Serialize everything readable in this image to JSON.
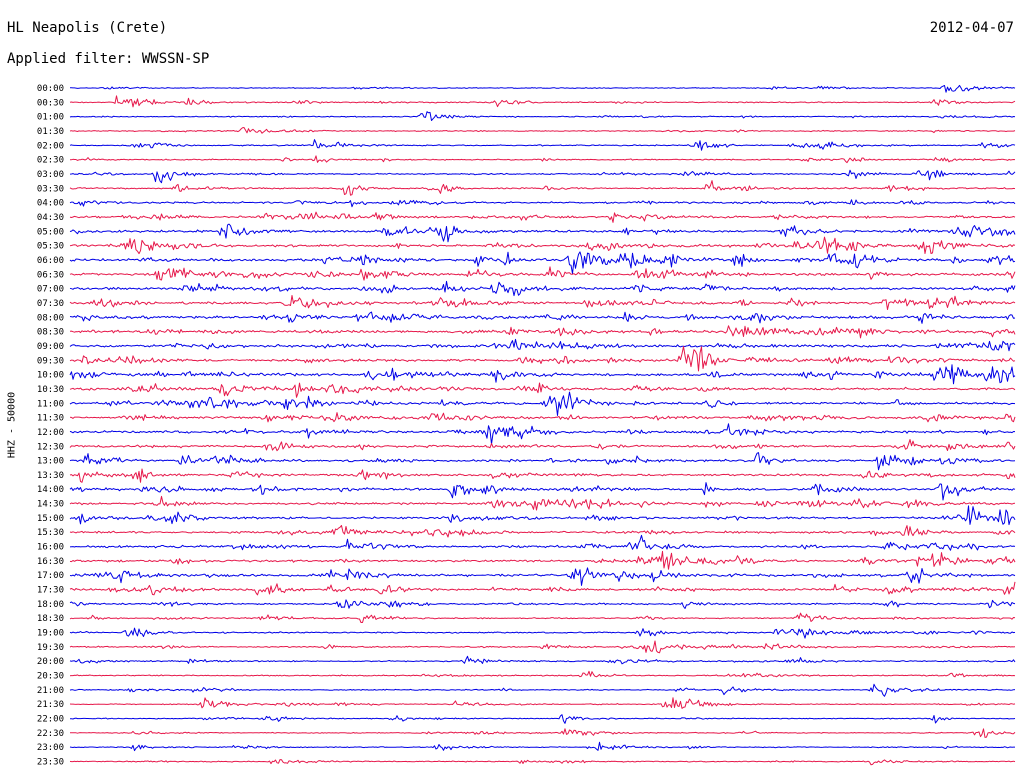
{
  "header": {
    "station": "HL Neapolis (Crete)",
    "date": "2012-04-07",
    "filter": "Applied filter: WWSSN-SP"
  },
  "chart_data": {
    "type": "line",
    "title": "HL Neapolis (Crete)",
    "subtitle": "Applied filter: WWSSN-SP",
    "date": "2012-04-07",
    "ylabel": "HHZ - 50000",
    "xlabel": "",
    "grid": false,
    "legend": "none",
    "trace_colors": [
      "#0000e6",
      "#e6194b"
    ],
    "rows": [
      "00:00",
      "00:30",
      "01:00",
      "01:30",
      "02:00",
      "02:30",
      "03:00",
      "03:30",
      "04:00",
      "04:30",
      "05:00",
      "05:30",
      "06:00",
      "06:30",
      "07:00",
      "07:30",
      "08:00",
      "08:30",
      "09:00",
      "09:30",
      "10:00",
      "10:30",
      "11:00",
      "11:30",
      "12:00",
      "12:30",
      "13:00",
      "13:30",
      "14:00",
      "14:30",
      "15:00",
      "15:30",
      "16:00",
      "16:30",
      "17:00",
      "17:30",
      "18:00",
      "18:30",
      "19:00",
      "19:30",
      "20:00",
      "20:30",
      "21:00",
      "21:30",
      "22:00",
      "22:30",
      "23:00",
      "23:30"
    ],
    "activity": [
      0.15,
      0.2,
      0.2,
      0.2,
      0.25,
      0.25,
      0.3,
      0.35,
      0.45,
      0.55,
      0.65,
      0.7,
      0.75,
      0.75,
      0.75,
      0.75,
      0.75,
      0.75,
      0.7,
      0.7,
      0.7,
      0.7,
      0.7,
      0.65,
      0.65,
      0.6,
      0.6,
      0.55,
      0.6,
      0.6,
      0.6,
      0.6,
      0.6,
      0.6,
      0.65,
      0.6,
      0.4,
      0.3,
      0.3,
      0.3,
      0.3,
      0.25,
      0.2,
      0.2,
      0.15,
      0.15,
      0.15,
      0.15
    ],
    "events": [
      {
        "row": 1,
        "pos": 0.05,
        "amp": 1.3
      },
      {
        "row": 1,
        "pos": 0.45,
        "amp": 0.6
      },
      {
        "row": 2,
        "pos": 0.37,
        "amp": 0.7
      },
      {
        "row": 4,
        "pos": 0.26,
        "amp": 0.8
      },
      {
        "row": 4,
        "pos": 0.66,
        "amp": 0.8
      },
      {
        "row": 6,
        "pos": 0.09,
        "amp": 1.0
      },
      {
        "row": 10,
        "pos": 0.16,
        "amp": 1.0
      },
      {
        "row": 12,
        "pos": 0.53,
        "amp": 1.6
      },
      {
        "row": 13,
        "pos": 0.6,
        "amp": 1.0
      },
      {
        "row": 20,
        "pos": 0.45,
        "amp": 1.0
      },
      {
        "row": 20,
        "pos": 0.97,
        "amp": 1.0
      },
      {
        "row": 28,
        "pos": 0.79,
        "amp": 1.0
      },
      {
        "row": 30,
        "pos": 0.95,
        "amp": 0.9
      },
      {
        "row": 35,
        "pos": 0.2,
        "amp": 1.2
      },
      {
        "row": 37,
        "pos": 0.31,
        "amp": 0.7
      },
      {
        "row": 38,
        "pos": 0.06,
        "amp": 0.9
      },
      {
        "row": 39,
        "pos": 0.61,
        "amp": 1.1
      },
      {
        "row": 40,
        "pos": 0.42,
        "amp": 0.6
      },
      {
        "row": 42,
        "pos": 0.85,
        "amp": 0.9
      },
      {
        "row": 43,
        "pos": 0.14,
        "amp": 0.7
      },
      {
        "row": 43,
        "pos": 0.63,
        "amp": 1.3
      },
      {
        "row": 45,
        "pos": 0.96,
        "amp": 0.6
      },
      {
        "row": 46,
        "pos": 0.56,
        "amp": 0.6
      }
    ]
  }
}
